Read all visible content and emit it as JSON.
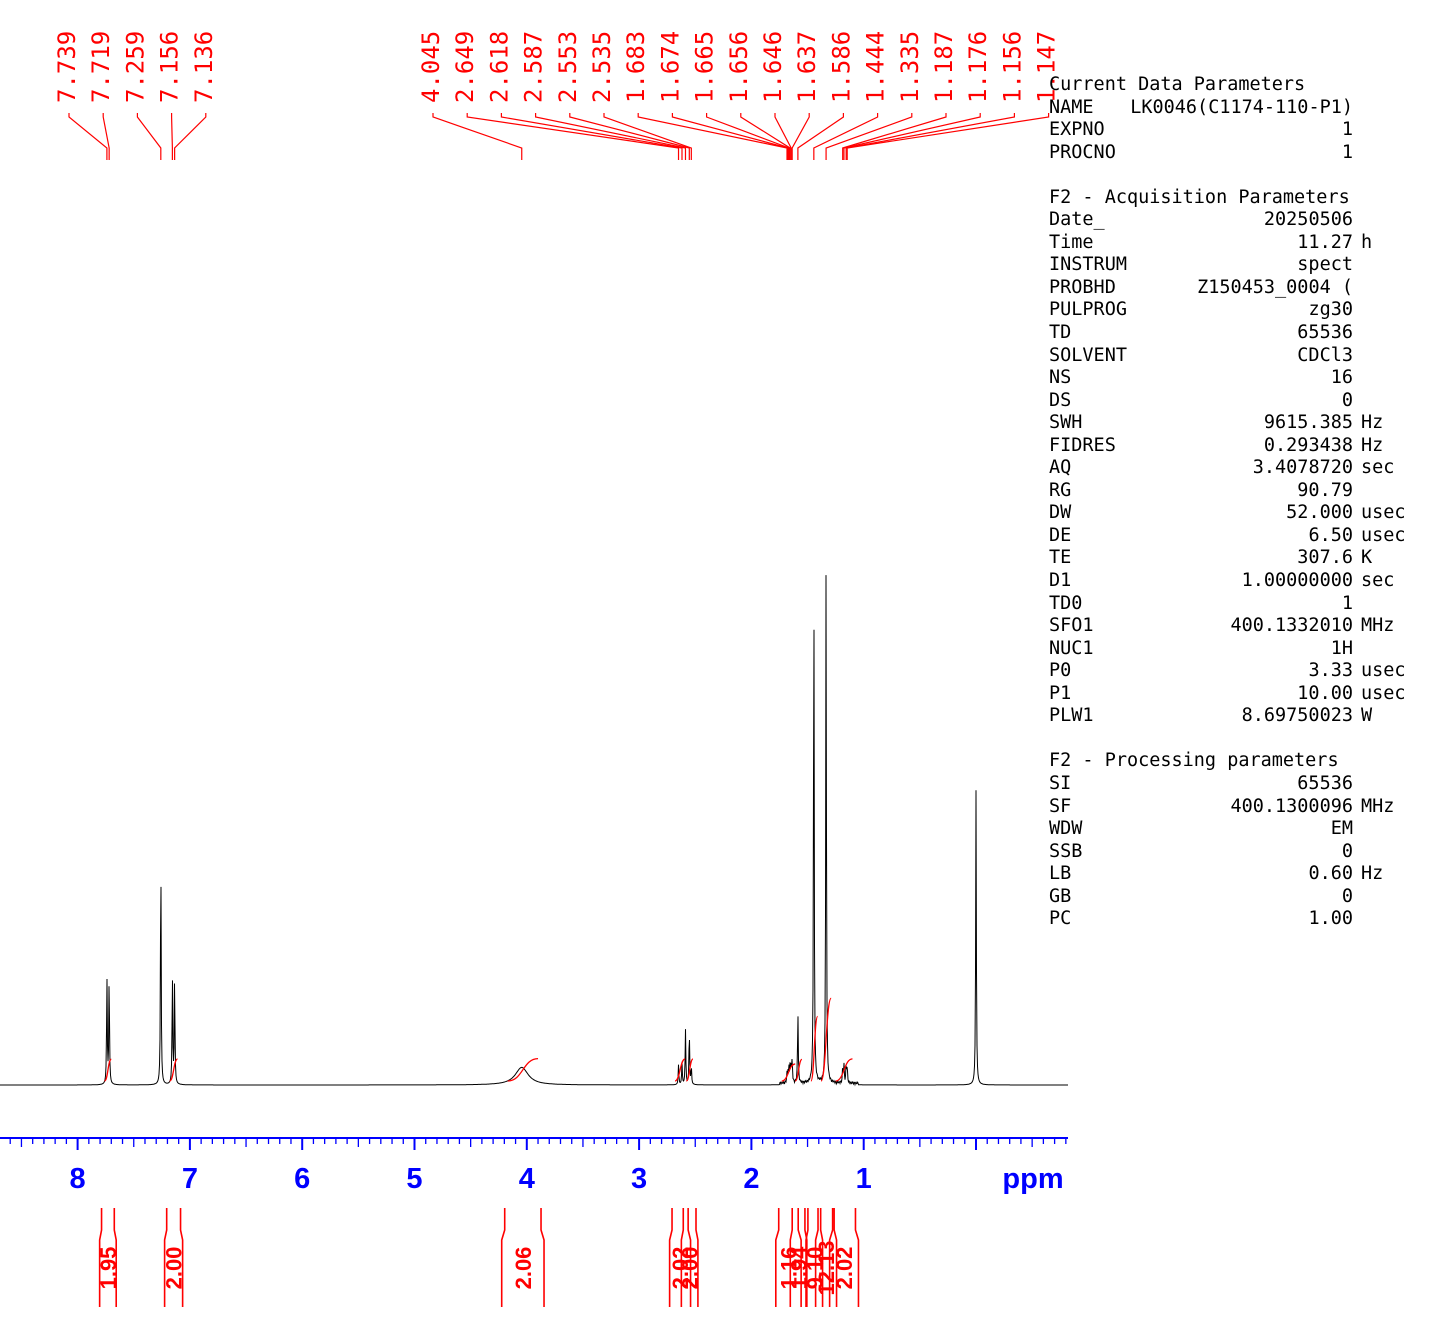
{
  "chart_data": {
    "type": "line",
    "title": "",
    "xlabel": "ppm",
    "x_range": [
      9.87,
      0.0
    ],
    "x_ticks": [
      8,
      7,
      6,
      5,
      4,
      3,
      2,
      1
    ],
    "axis_unit": "ppm",
    "colors": {
      "spectrum": "#000000",
      "labels": "#ff0000",
      "axis": "#0000ff"
    },
    "peaks": [
      {
        "ppm": 7.739,
        "height": 0.245
      },
      {
        "ppm": 7.719,
        "height": 0.25
      },
      {
        "ppm": 7.259,
        "height": 0.55
      },
      {
        "ppm": 7.156,
        "height": 0.25
      },
      {
        "ppm": 7.136,
        "height": 0.245
      },
      {
        "ppm": 4.045,
        "height": 0.04,
        "width": 0.07
      },
      {
        "ppm": 2.649,
        "height": 0.045
      },
      {
        "ppm": 2.618,
        "height": 0.05
      },
      {
        "ppm": 2.587,
        "height": 0.125
      },
      {
        "ppm": 2.553,
        "height": 0.125
      },
      {
        "ppm": 2.535,
        "height": 0.04
      },
      {
        "ppm": 1.683,
        "height": 0.02
      },
      {
        "ppm": 1.674,
        "height": 0.025
      },
      {
        "ppm": 1.665,
        "height": 0.03
      },
      {
        "ppm": 1.656,
        "height": 0.035
      },
      {
        "ppm": 1.646,
        "height": 0.04
      },
      {
        "ppm": 1.637,
        "height": 0.05
      },
      {
        "ppm": 1.586,
        "height": 0.165
      },
      {
        "ppm": 1.444,
        "height": 1.2
      },
      {
        "ppm": 1.335,
        "height": 1.2
      },
      {
        "ppm": 1.187,
        "height": 0.035
      },
      {
        "ppm": 1.176,
        "height": 0.04
      },
      {
        "ppm": 1.156,
        "height": 0.04
      },
      {
        "ppm": 1.147,
        "height": 0.035
      },
      {
        "ppm": 0.0,
        "height": 0.67
      }
    ],
    "peak_labels": [
      "7.739",
      "7.719",
      "7.259",
      "7.156",
      "7.136",
      "4.045",
      "2.649",
      "2.618",
      "2.587",
      "2.553",
      "2.535",
      "1.683",
      "1.674",
      "1.665",
      "1.656",
      "1.646",
      "1.637",
      "1.586",
      "1.444",
      "1.335",
      "1.187",
      "1.176",
      "1.156",
      "1.147"
    ],
    "integrals": [
      {
        "from": 7.76,
        "to": 7.7,
        "value": "1.95"
      },
      {
        "from": 7.18,
        "to": 7.11,
        "value": "2.00"
      },
      {
        "from": 4.17,
        "to": 3.9,
        "value": "2.06"
      },
      {
        "from": 2.68,
        "to": 2.59,
        "value": "2.02"
      },
      {
        "from": 2.58,
        "to": 2.52,
        "value": "2.00"
      },
      {
        "from": 1.73,
        "to": 1.61,
        "value": "1.16"
      },
      {
        "from": 1.61,
        "to": 1.55,
        "value": "1.94"
      },
      {
        "from": 1.47,
        "to": 1.41,
        "value": "9.10"
      },
      {
        "from": 1.38,
        "to": 1.29,
        "value": "12.13"
      },
      {
        "from": 1.25,
        "to": 1.1,
        "value": "2.02"
      }
    ]
  },
  "parameters": {
    "current_title": "Current Data Parameters",
    "current": [
      {
        "key": "NAME",
        "value": "LK0046(C1174-110-P1)",
        "unit": ""
      },
      {
        "key": "EXPNO",
        "value": "1",
        "unit": ""
      },
      {
        "key": "PROCNO",
        "value": "1",
        "unit": ""
      }
    ],
    "acq_title": "F2 - Acquisition Parameters",
    "acquisition": [
      {
        "key": "Date_",
        "value": "20250506",
        "unit": ""
      },
      {
        "key": "Time",
        "value": "11.27",
        "unit": "h"
      },
      {
        "key": "INSTRUM",
        "value": "spect",
        "unit": ""
      },
      {
        "key": "PROBHD",
        "value": "Z150453_0004 (",
        "unit": ""
      },
      {
        "key": "PULPROG",
        "value": "zg30",
        "unit": ""
      },
      {
        "key": "TD",
        "value": "65536",
        "unit": ""
      },
      {
        "key": "SOLVENT",
        "value": "CDCl3",
        "unit": ""
      },
      {
        "key": "NS",
        "value": "16",
        "unit": ""
      },
      {
        "key": "DS",
        "value": "0",
        "unit": ""
      },
      {
        "key": "SWH",
        "value": "9615.385",
        "unit": "Hz"
      },
      {
        "key": "FIDRES",
        "value": "0.293438",
        "unit": "Hz"
      },
      {
        "key": "AQ",
        "value": "3.4078720",
        "unit": "sec"
      },
      {
        "key": "RG",
        "value": "90.79",
        "unit": ""
      },
      {
        "key": "DW",
        "value": "52.000",
        "unit": "usec"
      },
      {
        "key": "DE",
        "value": "6.50",
        "unit": "usec"
      },
      {
        "key": "TE",
        "value": "307.6",
        "unit": "K"
      },
      {
        "key": "D1",
        "value": "1.00000000",
        "unit": "sec"
      },
      {
        "key": "TD0",
        "value": "1",
        "unit": ""
      },
      {
        "key": "SFO1",
        "value": "400.1332010",
        "unit": "MHz"
      },
      {
        "key": "NUC1",
        "value": "1H",
        "unit": ""
      },
      {
        "key": "P0",
        "value": "3.33",
        "unit": "usec"
      },
      {
        "key": "P1",
        "value": "10.00",
        "unit": "usec"
      },
      {
        "key": "PLW1",
        "value": "8.69750023",
        "unit": "W"
      }
    ],
    "proc_title": "F2 - Processing parameters",
    "processing": [
      {
        "key": "SI",
        "value": "65536",
        "unit": ""
      },
      {
        "key": "SF",
        "value": "400.1300096",
        "unit": "MHz"
      },
      {
        "key": "WDW",
        "value": "EM",
        "unit": ""
      },
      {
        "key": "SSB",
        "value": "0",
        "unit": ""
      },
      {
        "key": "LB",
        "value": "0.60",
        "unit": "Hz"
      },
      {
        "key": "GB",
        "value": "0",
        "unit": ""
      },
      {
        "key": "PC",
        "value": "1.00",
        "unit": ""
      }
    ]
  }
}
